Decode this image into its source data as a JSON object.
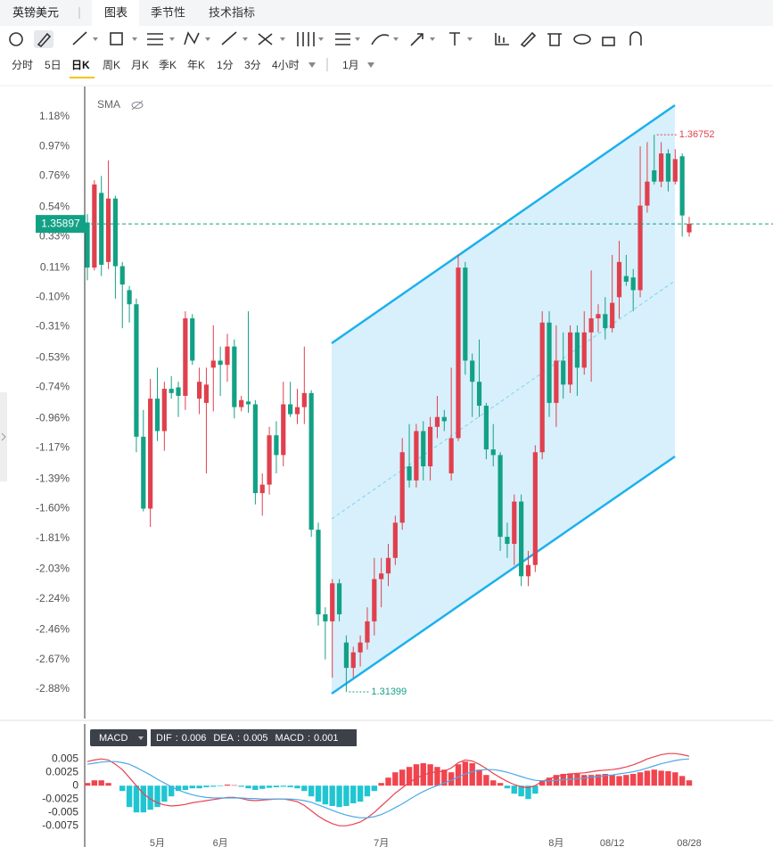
{
  "header": {
    "symbol": "英镑美元",
    "tabs": [
      "图表",
      "季节性",
      "技术指标"
    ]
  },
  "timeframes": [
    "分时",
    "5日",
    "日K",
    "周K",
    "月K",
    "季K",
    "年K",
    "1分",
    "3分",
    "4小时"
  ],
  "period": "1月",
  "chart_data": [
    {
      "type": "candlestick",
      "indicator": "SMA",
      "up_color": "#e0404e",
      "down_color": "#13a185",
      "price_label": "1.35897",
      "high_label": "1.36752",
      "low_label": "1.31399",
      "ylim": [
        -3.09,
        1.395
      ],
      "yticks": [
        {
          "value": 1.18,
          "label": "1.18%"
        },
        {
          "value": 0.97,
          "label": "0.97%"
        },
        {
          "value": 0.76,
          "label": "0.76%"
        },
        {
          "value": 0.54,
          "label": "0.54%"
        },
        {
          "value": 0.33,
          "label": "0.33%"
        },
        {
          "value": 0.11,
          "label": "0.11%"
        },
        {
          "value": -0.1,
          "label": "-0.10%"
        },
        {
          "value": -0.31,
          "label": "-0.31%"
        },
        {
          "value": -0.53,
          "label": "-0.53%"
        },
        {
          "value": -0.74,
          "label": "-0.74%"
        },
        {
          "value": -0.96,
          "label": "-0.96%"
        },
        {
          "value": -1.17,
          "label": "-1.17%"
        },
        {
          "value": -1.39,
          "label": "-1.39%"
        },
        {
          "value": -1.6,
          "label": "-1.60%"
        },
        {
          "value": -1.81,
          "label": "-1.81%"
        },
        {
          "value": -2.03,
          "label": "-2.03%"
        },
        {
          "value": -2.24,
          "label": "-2.24%"
        },
        {
          "value": -2.46,
          "label": "-2.46%"
        },
        {
          "value": -2.67,
          "label": "-2.67%"
        },
        {
          "value": -2.88,
          "label": "-2.88%"
        }
      ],
      "candles": [
        [
          0.43,
          0.49,
          0.02,
          0.11
        ],
        [
          0.11,
          0.73,
          0.09,
          0.7
        ],
        [
          0.64,
          0.76,
          0.05,
          0.13
        ],
        [
          0.15,
          0.87,
          0.1,
          0.6
        ],
        [
          0.6,
          0.62,
          -0.11,
          0.12
        ],
        [
          0.12,
          0.15,
          -0.32,
          -0.01
        ],
        [
          -0.05,
          -0.02,
          -0.28,
          -0.15
        ],
        [
          -0.15,
          -0.11,
          -1.2,
          -1.09
        ],
        [
          -1.09,
          -0.9,
          -1.62,
          -1.6
        ],
        [
          -1.6,
          -0.68,
          -1.73,
          -0.82
        ],
        [
          -0.82,
          -0.6,
          -1.12,
          -1.05
        ],
        [
          -1.05,
          -0.7,
          -1.19,
          -0.75
        ],
        [
          -0.75,
          -0.66,
          -0.82,
          -0.78
        ],
        [
          -0.74,
          -0.7,
          -0.95,
          -0.8
        ],
        [
          -0.8,
          -0.2,
          -0.9,
          -0.25
        ],
        [
          -0.25,
          -0.22,
          -0.58,
          -0.55
        ],
        [
          -0.82,
          -0.6,
          -0.93,
          -0.7
        ],
        [
          -0.85,
          -0.6,
          -1.35,
          -0.72
        ],
        [
          -0.6,
          -0.3,
          -0.91,
          -0.55
        ],
        [
          -0.55,
          -0.45,
          -0.8,
          -0.58
        ],
        [
          -0.58,
          -0.36,
          -0.7,
          -0.45
        ],
        [
          -0.45,
          -0.4,
          -0.96,
          -0.88
        ],
        [
          -0.88,
          -0.8,
          -0.91,
          -0.83
        ],
        [
          -0.84,
          -0.2,
          -0.92,
          -0.86
        ],
        [
          -0.86,
          -0.83,
          -1.57,
          -1.49
        ],
        [
          -1.49,
          -1.35,
          -1.65,
          -1.43
        ],
        [
          -1.43,
          -1.02,
          -1.5,
          -1.08
        ],
        [
          -1.08,
          -0.98,
          -1.35,
          -1.22
        ],
        [
          -1.22,
          -0.7,
          -1.3,
          -0.86
        ],
        [
          -0.86,
          -0.7,
          -0.95,
          -0.93
        ],
        [
          -0.93,
          -0.75,
          -1.0,
          -0.88
        ],
        [
          -0.88,
          -0.45,
          -1.0,
          -0.78
        ],
        [
          -0.78,
          -0.76,
          -1.8,
          -1.75
        ],
        [
          -1.75,
          -1.7,
          -2.43,
          -2.35
        ],
        [
          -2.35,
          -2.3,
          -2.67,
          -2.4
        ],
        [
          -2.4,
          -2.1,
          -2.8,
          -2.13
        ],
        [
          -2.13,
          -2.1,
          -2.4,
          -2.35
        ],
        [
          -2.55,
          -2.5,
          -2.9,
          -2.73
        ],
        [
          -2.73,
          -2.58,
          -2.8,
          -2.62
        ],
        [
          -2.62,
          -2.5,
          -2.72,
          -2.55
        ],
        [
          -2.55,
          -2.3,
          -2.6,
          -2.4
        ],
        [
          -2.4,
          -1.95,
          -2.5,
          -2.1
        ],
        [
          -2.1,
          -1.95,
          -2.3,
          -2.06
        ],
        [
          -2.06,
          -1.85,
          -2.15,
          -1.95
        ],
        [
          -1.95,
          -1.65,
          -2.0,
          -1.7
        ],
        [
          -1.7,
          -1.1,
          -1.75,
          -1.2
        ],
        [
          -1.3,
          -1.0,
          -1.45,
          -1.4
        ],
        [
          -1.4,
          -1.0,
          -1.45,
          -1.05
        ],
        [
          -1.05,
          -0.98,
          -1.4,
          -1.3
        ],
        [
          -1.3,
          -0.95,
          -1.4,
          -1.02
        ],
        [
          -1.02,
          -0.8,
          -1.1,
          -0.95
        ],
        [
          -0.95,
          -0.9,
          -1.05,
          -0.98
        ],
        [
          -1.35,
          -0.6,
          -1.4,
          -1.1
        ],
        [
          -1.1,
          0.2,
          -1.12,
          0.11
        ],
        [
          0.11,
          0.15,
          -0.65,
          -0.55
        ],
        [
          -0.55,
          -0.5,
          -0.95,
          -0.7
        ],
        [
          -0.7,
          -0.4,
          -0.95,
          -0.87
        ],
        [
          -0.87,
          -0.85,
          -1.25,
          -1.18
        ],
        [
          -1.18,
          -1.0,
          -1.3,
          -1.22
        ],
        [
          -1.22,
          -1.2,
          -1.9,
          -1.8
        ],
        [
          -1.8,
          -1.7,
          -1.95,
          -1.85
        ],
        [
          -1.85,
          -1.5,
          -2.0,
          -1.55
        ],
        [
          -1.55,
          -1.5,
          -2.15,
          -2.08
        ],
        [
          -2.08,
          -1.9,
          -2.15,
          -2.0
        ],
        [
          -2.0,
          -1.15,
          -2.05,
          -1.2
        ],
        [
          -1.2,
          -0.2,
          -1.25,
          -0.28
        ],
        [
          -0.28,
          -0.2,
          -0.95,
          -0.85
        ],
        [
          -0.85,
          -0.3,
          -1.02,
          -0.55
        ],
        [
          -0.55,
          -0.35,
          -0.82,
          -0.72
        ],
        [
          -0.72,
          -0.3,
          -0.78,
          -0.35
        ],
        [
          -0.35,
          -0.3,
          -0.8,
          -0.6
        ],
        [
          -0.6,
          -0.2,
          -0.65,
          -0.35
        ],
        [
          -0.35,
          0.09,
          -0.7,
          -0.25
        ],
        [
          -0.25,
          -0.15,
          -0.35,
          -0.22
        ],
        [
          -0.22,
          -0.1,
          -0.4,
          -0.32
        ],
        [
          -0.32,
          0.2,
          -0.35,
          -0.14
        ],
        [
          -0.1,
          0.3,
          -0.25,
          0.15
        ],
        [
          0.05,
          0.2,
          -0.02,
          0.01
        ],
        [
          0.04,
          0.1,
          -0.2,
          -0.05
        ],
        [
          -0.05,
          0.97,
          -0.1,
          0.55
        ],
        [
          0.55,
          1.0,
          0.5,
          0.72
        ],
        [
          0.8,
          1.053,
          0.7,
          0.72
        ],
        [
          0.72,
          1.0,
          0.68,
          0.92
        ],
        [
          0.92,
          0.95,
          0.65,
          0.72
        ],
        [
          0.72,
          0.95,
          0.7,
          0.88
        ],
        [
          0.9,
          0.92,
          0.33,
          0.48
        ],
        [
          0.36,
          0.47,
          0.33,
          0.42
        ]
      ]
    },
    {
      "type": "macd",
      "indicator": "MACD",
      "readout_separator": ":",
      "ylim": [
        -0.0098,
        0.0072
      ],
      "yticks": [
        0.005,
        0.0025,
        0,
        -0.0025,
        -0.005,
        -0.0075
      ],
      "categories": [
        null,
        null,
        null,
        null,
        null,
        null,
        null,
        null,
        null,
        null,
        "5月",
        null,
        null,
        null,
        null,
        null,
        null,
        null,
        null,
        "6月",
        null,
        null,
        null,
        null,
        null,
        null,
        null,
        null,
        null,
        null,
        null,
        null,
        null,
        null,
        null,
        null,
        null,
        null,
        null,
        null,
        null,
        null,
        "7月",
        null,
        null,
        null,
        null,
        null,
        null,
        null,
        null,
        null,
        null,
        null,
        null,
        null,
        null,
        null,
        null,
        null,
        null,
        null,
        null,
        null,
        null,
        null,
        null,
        "8月",
        null,
        null,
        null,
        null,
        null,
        null,
        null,
        "08/12",
        null,
        null,
        null,
        null,
        null,
        null,
        null,
        null,
        null,
        null,
        "08/28"
      ],
      "series": [
        {
          "name": "DIF",
          "kind": "line",
          "color": "#e8434f",
          "readout": 0.006,
          "values": [
            0.0045,
            0.0048,
            0.005,
            0.0048,
            0.004,
            0.003,
            0.0015,
            0,
            -0.0015,
            -0.0025,
            -0.0032,
            -0.0036,
            -0.0038,
            -0.0037,
            -0.0035,
            -0.0032,
            -0.003,
            -0.0028,
            -0.0026,
            -0.0024,
            -0.0022,
            -0.0022,
            -0.0024,
            -0.0027,
            -0.0028,
            -0.0027,
            -0.0026,
            -0.0025,
            -0.0025,
            -0.0027,
            -0.003,
            -0.0037,
            -0.0047,
            -0.0057,
            -0.0065,
            -0.0071,
            -0.0075,
            -0.0075,
            -0.0072,
            -0.0068,
            -0.006,
            -0.005,
            -0.0038,
            -0.0026,
            -0.0014,
            -0.0004,
            0.0006,
            0.0014,
            0.002,
            0.0024,
            0.0026,
            0.0027,
            0.0033,
            0.0043,
            0.0048,
            0.0046,
            0.004,
            0.0032,
            0.0023,
            0.0015,
            0.0008,
            0.0002,
            -0.0002,
            -0.0004,
            0,
            0.0008,
            0.0013,
            0.0017,
            0.002,
            0.0022,
            0.0023,
            0.0024,
            0.0026,
            0.0028,
            0.0029,
            0.003,
            0.0032,
            0.0035,
            0.0039,
            0.0044,
            0.005,
            0.0054,
            0.0058,
            0.006,
            0.006,
            0.0058,
            0.0055
          ]
        },
        {
          "name": "DEA",
          "kind": "line",
          "color": "#4ba9e8",
          "readout": 0.005,
          "values": [
            0.004,
            0.0042,
            0.0044,
            0.0045,
            0.0045,
            0.0043,
            0.004,
            0.0034,
            0.0027,
            0.002,
            0.0012,
            0.0005,
            -0.0002,
            -0.0008,
            -0.0013,
            -0.0017,
            -0.002,
            -0.0022,
            -0.0023,
            -0.0023,
            -0.0023,
            -0.0023,
            -0.0023,
            -0.0024,
            -0.0024,
            -0.0025,
            -0.0025,
            -0.0025,
            -0.0025,
            -0.0025,
            -0.0026,
            -0.0028,
            -0.0031,
            -0.0036,
            -0.0041,
            -0.0046,
            -0.0051,
            -0.0055,
            -0.0058,
            -0.006,
            -0.006,
            -0.0058,
            -0.0054,
            -0.0048,
            -0.0041,
            -0.0034,
            -0.0026,
            -0.0018,
            -0.0011,
            -0.0005,
            0,
            0.0005,
            0.001,
            0.0016,
            0.0022,
            0.0026,
            0.0029,
            0.003,
            0.003,
            0.0028,
            0.0025,
            0.0021,
            0.0017,
            0.0013,
            0.001,
            0.0009,
            0.0009,
            0.001,
            0.0011,
            0.0012,
            0.0013,
            0.0014,
            0.0016,
            0.0017,
            0.0019,
            0.002,
            0.0022,
            0.0024,
            0.0026,
            0.0029,
            0.0033,
            0.0037,
            0.0041,
            0.0044,
            0.0047,
            0.0049,
            0.005
          ]
        },
        {
          "name": "MACD",
          "kind": "bar",
          "up_color": "#f0454f",
          "down_color": "#1fc6d2",
          "readout": 0.001,
          "values": [
            0.0005,
            0.001,
            0.001,
            0.0005,
            0,
            -0.001,
            -0.004,
            -0.005,
            -0.005,
            -0.0045,
            -0.004,
            -0.003,
            -0.002,
            -0.001,
            -0.0008,
            -0.0005,
            -0.0005,
            -0.0003,
            -0.0002,
            -0.0001,
            0.0002,
            0.0001,
            -0.0002,
            -0.0005,
            -0.0008,
            -0.0006,
            -0.0004,
            -0.0003,
            -0.0002,
            -0.0003,
            -0.0005,
            -0.001,
            -0.002,
            -0.003,
            -0.0035,
            -0.0038,
            -0.004,
            -0.0038,
            -0.0033,
            -0.003,
            -0.002,
            -0.001,
            0.0005,
            0.0015,
            0.0025,
            0.003,
            0.0035,
            0.004,
            0.0042,
            0.004,
            0.0035,
            0.003,
            0.0025,
            0.004,
            0.0045,
            0.0042,
            0.003,
            0.002,
            0.001,
            0.0005,
            -0.0005,
            -0.0015,
            -0.002,
            -0.0025,
            -0.0015,
            0.001,
            0.0015,
            0.002,
            0.0022,
            0.0023,
            0.0022,
            0.002,
            0.002,
            0.0021,
            0.0022,
            0.002,
            0.0018,
            0.002,
            0.0022,
            0.0025,
            0.0028,
            0.003,
            0.0028,
            0.0027,
            0.0025,
            0.0018,
            0.001
          ]
        }
      ]
    }
  ]
}
